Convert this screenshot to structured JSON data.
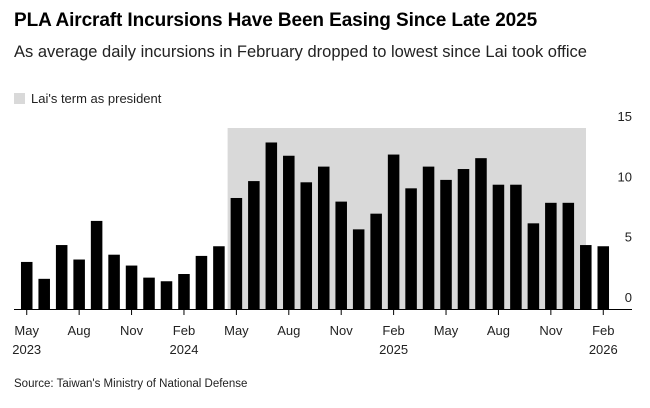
{
  "title": "PLA Aircraft Incursions Have Been Easing Since Late 2025",
  "subtitle": "As average daily incursions in February dropped to lowest since Lai took office",
  "legend": {
    "shaded_label": "Lai's term as president"
  },
  "source": "Source: Taiwan's Ministry of National Defense",
  "colors": {
    "bar": "#000000",
    "shade": "#d9d9d9",
    "axis": "#000000"
  },
  "chart_data": {
    "type": "bar",
    "categories": [
      "2023-05",
      "2023-06",
      "2023-07",
      "2023-08",
      "2023-09",
      "2023-10",
      "2023-11",
      "2023-12",
      "2024-01",
      "2024-02",
      "2024-03",
      "2024-04",
      "2024-05",
      "2024-06",
      "2024-07",
      "2024-08",
      "2024-09",
      "2024-10",
      "2024-11",
      "2024-12",
      "2025-01",
      "2025-02",
      "2025-03",
      "2025-04",
      "2025-05",
      "2025-06",
      "2025-07",
      "2025-08",
      "2025-09",
      "2025-10",
      "2025-11",
      "2025-12",
      "2026-01",
      "2026-02"
    ],
    "values": [
      3.9,
      2.5,
      5.3,
      4.1,
      7.3,
      4.5,
      3.6,
      2.6,
      2.3,
      2.9,
      4.4,
      5.2,
      9.2,
      10.6,
      13.8,
      12.7,
      10.5,
      11.8,
      8.9,
      6.6,
      7.9,
      12.8,
      10.0,
      11.8,
      10.7,
      11.6,
      12.5,
      10.3,
      10.3,
      7.1,
      8.8,
      8.8,
      5.3,
      5.2
    ],
    "shaded_from_index": 12,
    "shaded_label": "Lai's term as president",
    "ylim": [
      0,
      15
    ],
    "yticks": [
      0,
      5,
      10,
      15
    ],
    "ylabel": "",
    "xlabel": "",
    "xtick_labels": [
      {
        "index": 0,
        "month": "May",
        "year": "2023"
      },
      {
        "index": 3,
        "month": "Aug",
        "year": ""
      },
      {
        "index": 6,
        "month": "Nov",
        "year": ""
      },
      {
        "index": 9,
        "month": "Feb",
        "year": "2024"
      },
      {
        "index": 12,
        "month": "May",
        "year": ""
      },
      {
        "index": 15,
        "month": "Aug",
        "year": ""
      },
      {
        "index": 18,
        "month": "Nov",
        "year": ""
      },
      {
        "index": 21,
        "month": "Feb",
        "year": "2025"
      },
      {
        "index": 24,
        "month": "May",
        "year": ""
      },
      {
        "index": 27,
        "month": "Aug",
        "year": ""
      },
      {
        "index": 30,
        "month": "Nov",
        "year": ""
      },
      {
        "index": 33,
        "month": "Feb",
        "year": "2026"
      }
    ],
    "title": "PLA Aircraft Incursions Have Been Easing Since Late 2025"
  }
}
